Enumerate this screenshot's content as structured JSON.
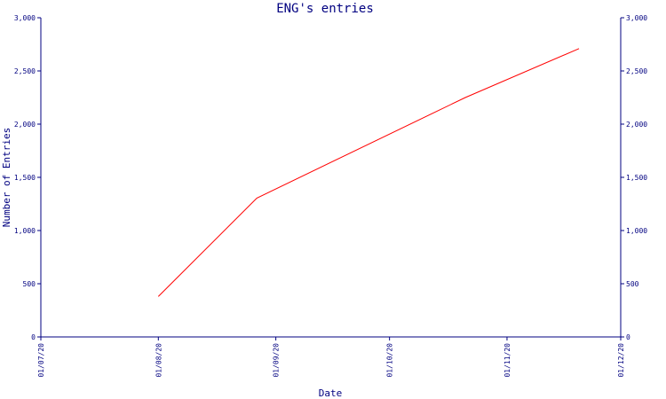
{
  "chart_data": {
    "type": "line",
    "title": "ENG's entries",
    "xlabel": "Date",
    "ylabel": "Number of Entries",
    "x_ticks": [
      "01/07/20",
      "01/08/20",
      "01/09/20",
      "01/10/20",
      "01/11/20",
      "01/12/20"
    ],
    "y_ticks": [
      "0",
      "500",
      "1,000",
      "1,500",
      "2,000",
      "2,500",
      "3,000"
    ],
    "ylim": [
      0,
      3000
    ],
    "xlim": [
      "2020-07-01",
      "2020-12-01"
    ],
    "y_axis_right": true,
    "grid": false,
    "series": [
      {
        "x": [
          "2020-08-01",
          "2020-08-27",
          "2020-10-21",
          "2020-11-20"
        ],
        "values": [
          380,
          1305,
          2250,
          2710
        ]
      }
    ],
    "colors": {
      "axis": "#000080",
      "line": "#ff0000",
      "text": "#000080",
      "background": "#ffffff"
    }
  }
}
